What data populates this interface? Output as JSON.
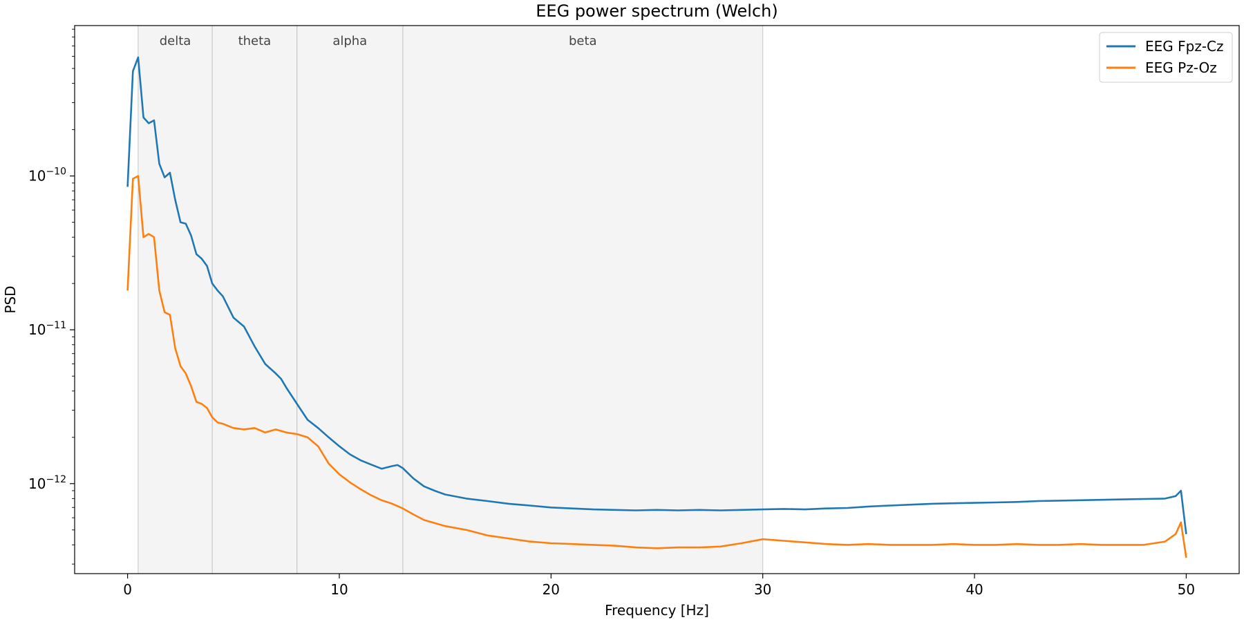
{
  "chart_data": {
    "type": "line",
    "title": "EEG power spectrum (Welch)",
    "xlabel": "Frequency [Hz]",
    "ylabel": "PSD",
    "xlim": [
      -2.5,
      52.5
    ],
    "ylim": [
      2.6e-13,
      9.5e-10
    ],
    "yscale": "log",
    "grid": false,
    "legend_position": "top-right",
    "x_ticks": [
      0,
      10,
      20,
      30,
      40,
      50
    ],
    "x_tick_labels": [
      "0",
      "10",
      "20",
      "30",
      "40",
      "50"
    ],
    "y_ticks": [
      1e-12,
      1e-11,
      1e-10
    ],
    "y_tick_labels": [
      {
        "base": "10",
        "exp": "−12"
      },
      {
        "base": "10",
        "exp": "−11"
      },
      {
        "base": "10",
        "exp": "−10"
      }
    ],
    "bands": [
      {
        "name": "delta",
        "range": [
          0.5,
          4
        ]
      },
      {
        "name": "theta",
        "range": [
          4,
          8
        ]
      },
      {
        "name": "alpha",
        "range": [
          8,
          13
        ]
      },
      {
        "name": "beta",
        "range": [
          13,
          30
        ]
      }
    ],
    "series": [
      {
        "name": "EEG Fpz-Cz",
        "color": "#1f77b4",
        "points": [
          [
            0,
            8.5e-11
          ],
          [
            0.25,
            4.8e-10
          ],
          [
            0.5,
            5.9e-10
          ],
          [
            0.75,
            2.4e-10
          ],
          [
            1.0,
            2.2e-10
          ],
          [
            1.25,
            2.3e-10
          ],
          [
            1.5,
            1.2e-10
          ],
          [
            1.75,
            9.8e-11
          ],
          [
            2.0,
            1.05e-10
          ],
          [
            2.25,
            7e-11
          ],
          [
            2.5,
            5e-11
          ],
          [
            2.75,
            4.9e-11
          ],
          [
            3.0,
            4.1e-11
          ],
          [
            3.25,
            3.1e-11
          ],
          [
            3.5,
            2.9e-11
          ],
          [
            3.75,
            2.6e-11
          ],
          [
            4.0,
            2e-11
          ],
          [
            4.25,
            1.8e-11
          ],
          [
            4.5,
            1.65e-11
          ],
          [
            5.0,
            1.2e-11
          ],
          [
            5.5,
            1.05e-11
          ],
          [
            6.0,
            7.8e-12
          ],
          [
            6.5,
            6e-12
          ],
          [
            7.0,
            5.2e-12
          ],
          [
            7.25,
            4.8e-12
          ],
          [
            7.5,
            4.2e-12
          ],
          [
            8.0,
            3.3e-12
          ],
          [
            8.5,
            2.6e-12
          ],
          [
            9.0,
            2.3e-12
          ],
          [
            9.5,
            2e-12
          ],
          [
            10.0,
            1.75e-12
          ],
          [
            10.5,
            1.55e-12
          ],
          [
            11.0,
            1.42e-12
          ],
          [
            11.5,
            1.33e-12
          ],
          [
            12.0,
            1.25e-12
          ],
          [
            12.5,
            1.3e-12
          ],
          [
            12.75,
            1.32e-12
          ],
          [
            13.0,
            1.26e-12
          ],
          [
            13.5,
            1.08e-12
          ],
          [
            14.0,
            9.6e-13
          ],
          [
            14.5,
            9e-13
          ],
          [
            15.0,
            8.5e-13
          ],
          [
            16.0,
            8e-13
          ],
          [
            17.0,
            7.7e-13
          ],
          [
            18.0,
            7.4e-13
          ],
          [
            19.0,
            7.2e-13
          ],
          [
            20.0,
            7e-13
          ],
          [
            21.0,
            6.9e-13
          ],
          [
            22.0,
            6.8e-13
          ],
          [
            23.0,
            6.75e-13
          ],
          [
            24.0,
            6.7e-13
          ],
          [
            25.0,
            6.75e-13
          ],
          [
            26.0,
            6.7e-13
          ],
          [
            27.0,
            6.75e-13
          ],
          [
            28.0,
            6.7e-13
          ],
          [
            29.0,
            6.75e-13
          ],
          [
            30.0,
            6.8e-13
          ],
          [
            31.0,
            6.85e-13
          ],
          [
            32.0,
            6.8e-13
          ],
          [
            33.0,
            6.9e-13
          ],
          [
            34.0,
            6.95e-13
          ],
          [
            35.0,
            7.1e-13
          ],
          [
            36.0,
            7.2e-13
          ],
          [
            37.0,
            7.3e-13
          ],
          [
            38.0,
            7.4e-13
          ],
          [
            39.0,
            7.45e-13
          ],
          [
            40.0,
            7.5e-13
          ],
          [
            41.0,
            7.55e-13
          ],
          [
            42.0,
            7.6e-13
          ],
          [
            43.0,
            7.7e-13
          ],
          [
            44.0,
            7.75e-13
          ],
          [
            45.0,
            7.8e-13
          ],
          [
            46.0,
            7.85e-13
          ],
          [
            47.0,
            7.9e-13
          ],
          [
            48.0,
            7.95e-13
          ],
          [
            49.0,
            8e-13
          ],
          [
            49.5,
            8.3e-13
          ],
          [
            49.75,
            9e-13
          ],
          [
            50.0,
            4.7e-13
          ]
        ]
      },
      {
        "name": "EEG Pz-Oz",
        "color": "#ff7f0e",
        "points": [
          [
            0,
            1.8e-11
          ],
          [
            0.25,
            9.6e-11
          ],
          [
            0.5,
            1e-10
          ],
          [
            0.75,
            4e-11
          ],
          [
            1.0,
            4.2e-11
          ],
          [
            1.25,
            4e-11
          ],
          [
            1.5,
            1.8e-11
          ],
          [
            1.75,
            1.3e-11
          ],
          [
            2.0,
            1.25e-11
          ],
          [
            2.25,
            7.6e-12
          ],
          [
            2.5,
            5.8e-12
          ],
          [
            2.75,
            5.2e-12
          ],
          [
            3.0,
            4.3e-12
          ],
          [
            3.25,
            3.4e-12
          ],
          [
            3.5,
            3.3e-12
          ],
          [
            3.75,
            3.1e-12
          ],
          [
            4.0,
            2.7e-12
          ],
          [
            4.25,
            2.5e-12
          ],
          [
            4.5,
            2.45e-12
          ],
          [
            5.0,
            2.3e-12
          ],
          [
            5.5,
            2.25e-12
          ],
          [
            6.0,
            2.3e-12
          ],
          [
            6.5,
            2.15e-12
          ],
          [
            7.0,
            2.25e-12
          ],
          [
            7.5,
            2.15e-12
          ],
          [
            8.0,
            2.1e-12
          ],
          [
            8.5,
            2e-12
          ],
          [
            9.0,
            1.75e-12
          ],
          [
            9.5,
            1.35e-12
          ],
          [
            10.0,
            1.15e-12
          ],
          [
            10.5,
            1.02e-12
          ],
          [
            11.0,
            9.2e-13
          ],
          [
            11.5,
            8.4e-13
          ],
          [
            12.0,
            7.8e-13
          ],
          [
            12.5,
            7.4e-13
          ],
          [
            13.0,
            6.9e-13
          ],
          [
            13.5,
            6.3e-13
          ],
          [
            14.0,
            5.8e-13
          ],
          [
            15.0,
            5.3e-13
          ],
          [
            16.0,
            5e-13
          ],
          [
            17.0,
            4.6e-13
          ],
          [
            18.0,
            4.4e-13
          ],
          [
            19.0,
            4.2e-13
          ],
          [
            20.0,
            4.1e-13
          ],
          [
            21.0,
            4.05e-13
          ],
          [
            22.0,
            4e-13
          ],
          [
            23.0,
            3.95e-13
          ],
          [
            24.0,
            3.85e-13
          ],
          [
            25.0,
            3.8e-13
          ],
          [
            26.0,
            3.85e-13
          ],
          [
            27.0,
            3.85e-13
          ],
          [
            28.0,
            3.9e-13
          ],
          [
            29.0,
            4.1e-13
          ],
          [
            30.0,
            4.35e-13
          ],
          [
            31.0,
            4.25e-13
          ],
          [
            32.0,
            4.15e-13
          ],
          [
            33.0,
            4.05e-13
          ],
          [
            34.0,
            4e-13
          ],
          [
            35.0,
            4.05e-13
          ],
          [
            36.0,
            4e-13
          ],
          [
            37.0,
            4e-13
          ],
          [
            38.0,
            4e-13
          ],
          [
            39.0,
            4.05e-13
          ],
          [
            40.0,
            4e-13
          ],
          [
            41.0,
            4e-13
          ],
          [
            42.0,
            4.05e-13
          ],
          [
            43.0,
            4e-13
          ],
          [
            44.0,
            4e-13
          ],
          [
            45.0,
            4.05e-13
          ],
          [
            46.0,
            4e-13
          ],
          [
            47.0,
            4e-13
          ],
          [
            48.0,
            4e-13
          ],
          [
            49.0,
            4.2e-13
          ],
          [
            49.5,
            4.7e-13
          ],
          [
            49.75,
            5.6e-13
          ],
          [
            50.0,
            3.3e-13
          ]
        ]
      }
    ]
  }
}
